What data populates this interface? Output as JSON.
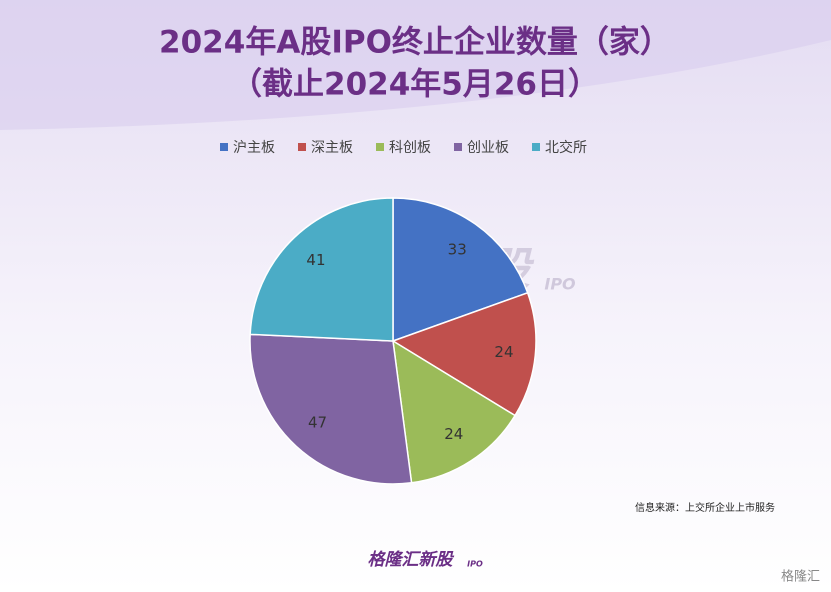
{
  "chart_data": {
    "type": "pie",
    "title": "2024年A股IPO终止企业数量（家）",
    "subtitle": "（截止2024年5月26日）",
    "categories": [
      "沪主板",
      "深主板",
      "科创板",
      "创业板",
      "北交所"
    ],
    "values": [
      33,
      24,
      24,
      47,
      41
    ],
    "colors": [
      "#4472c4",
      "#c0504d",
      "#9bbb59",
      "#8064a2",
      "#4bacc6"
    ],
    "legend": "top",
    "source": "信息来源：上交所企业上市服务",
    "watermarks": [
      "格隆汇新股",
      "IPO"
    ],
    "corner_logo": "格隆汇"
  }
}
